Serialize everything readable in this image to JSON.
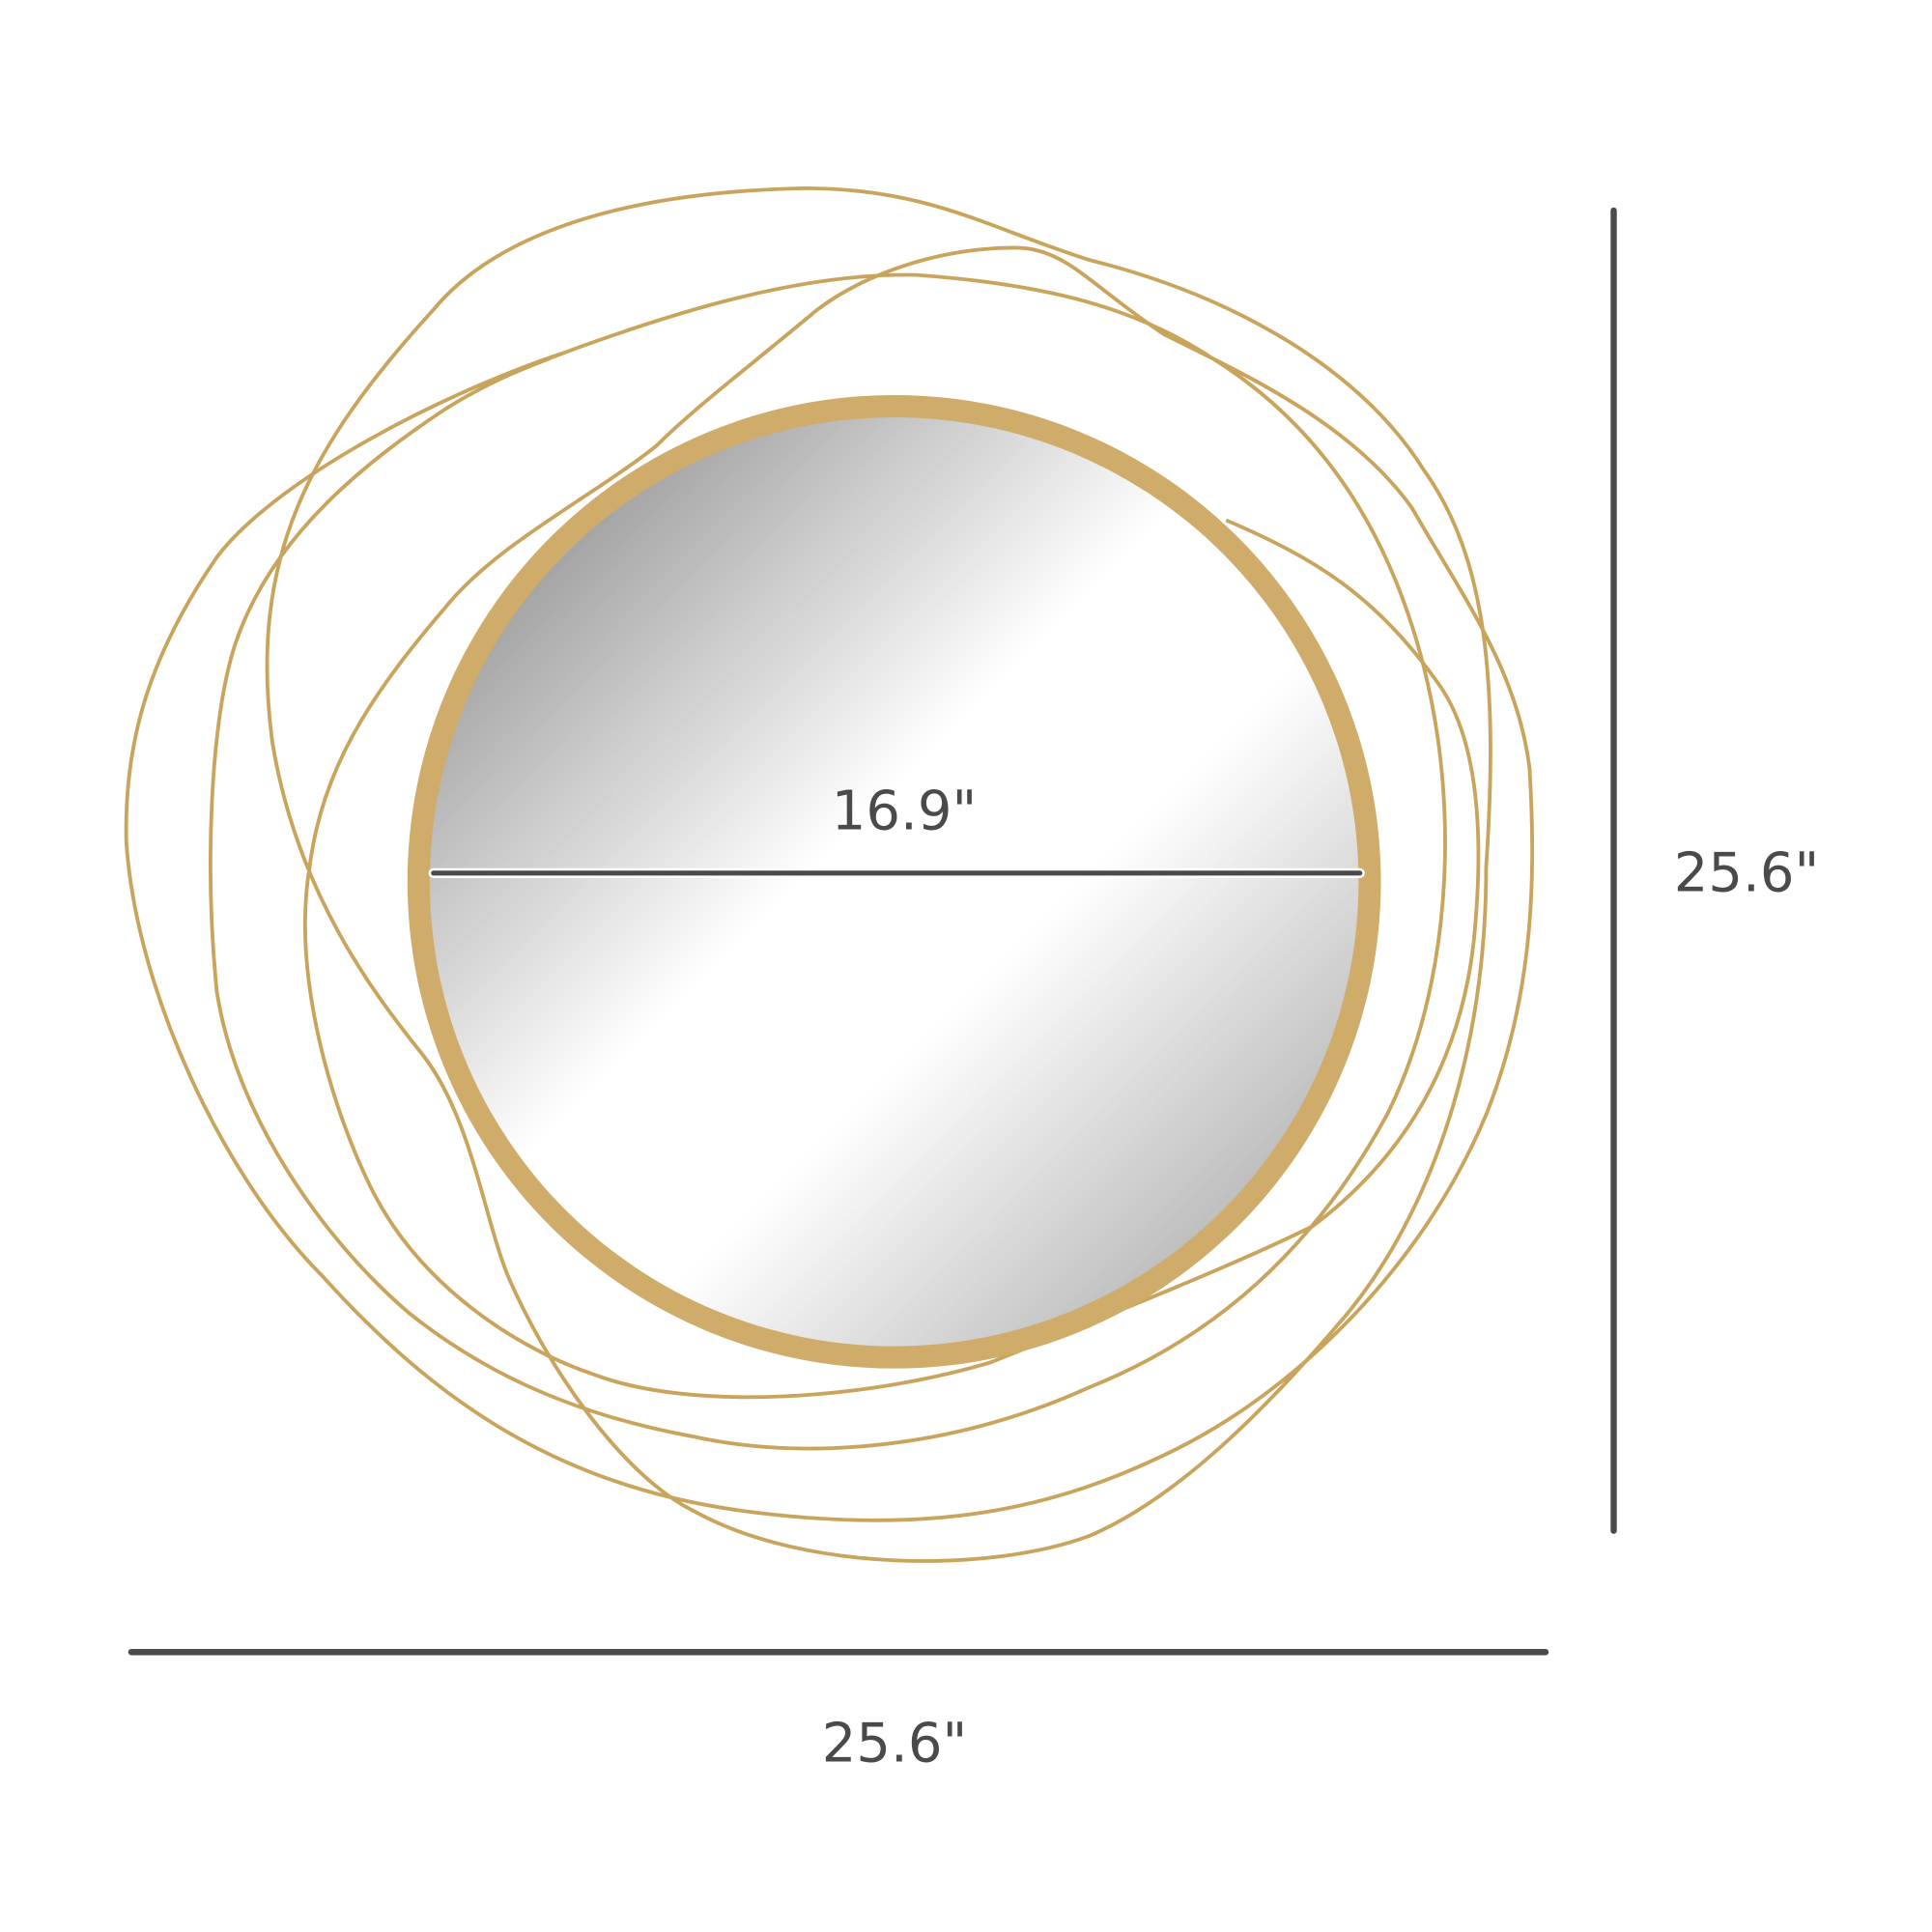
{
  "colors": {
    "wire": "#c9a45c",
    "frame": "#cfac6a",
    "dimension_line": "#4a4a4a",
    "text": "#4a4a4a"
  },
  "dimensions": {
    "mirror_diameter": "16.9\"",
    "height": "25.6\"",
    "width": "25.6\""
  }
}
